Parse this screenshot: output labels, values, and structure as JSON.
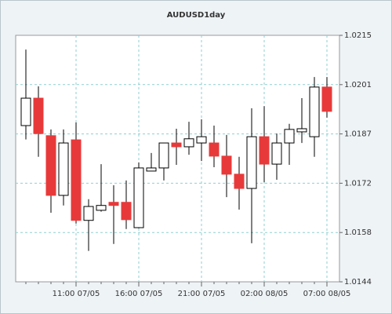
{
  "chart_data": {
    "type": "candlestick",
    "title": "AUDUSD1day",
    "categories": [
      null,
      null,
      null,
      null,
      "11:00 07/05",
      null,
      null,
      null,
      null,
      "16:00 07/05",
      null,
      null,
      null,
      null,
      "21:00 07/05",
      null,
      null,
      null,
      null,
      "02:00 08/05",
      null,
      null,
      null,
      null,
      "07:00 08/05"
    ],
    "open": [
      1.0189,
      1.01969,
      1.01861,
      1.01689,
      1.01849,
      1.01617,
      1.01646,
      1.01669,
      1.01669,
      1.01596,
      1.01759,
      1.01768,
      1.0184,
      1.01829,
      1.0184,
      1.0184,
      1.01802,
      1.0175,
      1.01709,
      1.01858,
      1.01779,
      1.0184,
      1.01872,
      1.01858,
      1.02001
    ],
    "high": [
      1.02109,
      1.02003,
      1.01879,
      1.01879,
      1.01899,
      1.01678,
      1.01779,
      1.01718,
      1.01732,
      1.01784,
      1.01811,
      1.0184,
      1.01881,
      1.01901,
      1.01908,
      1.0189,
      1.01863,
      1.018,
      1.0194,
      1.01946,
      1.01867,
      1.01895,
      1.01969,
      1.0203,
      1.0203
    ],
    "low": [
      1.0185,
      1.018,
      1.01639,
      1.0166,
      1.01608,
      1.01529,
      1.01642,
      1.01549,
      1.01592,
      1.01594,
      1.01759,
      1.01732,
      1.01777,
      1.01806,
      1.01788,
      1.0177,
      1.01684,
      1.01648,
      1.01551,
      1.01727,
      1.01734,
      1.01777,
      1.0184,
      1.018,
      1.01913
    ],
    "close": [
      1.01969,
      1.01867,
      1.01689,
      1.0184,
      1.01617,
      1.01657,
      1.0166,
      1.0166,
      1.01619,
      1.01768,
      1.01768,
      1.0184,
      1.01829,
      1.01852,
      1.01858,
      1.01802,
      1.0175,
      1.01709,
      1.01858,
      1.01779,
      1.0184,
      1.01879,
      1.01881,
      1.02001,
      1.01931
    ],
    "up_color": "#ffffff",
    "down_color": "#e8393a",
    "grid": true,
    "ylim": [
      1.0144,
      1.0215
    ],
    "yticks": [
      1.0144,
      {
        "value": 1.01582,
        "label": "1.0158"
      },
      {
        "value": 1.01724,
        "label": "1.0172"
      },
      {
        "value": 1.01866,
        "label": "1.0187"
      },
      {
        "value": 1.02008,
        "label": "1.0201"
      },
      1.0215
    ]
  }
}
